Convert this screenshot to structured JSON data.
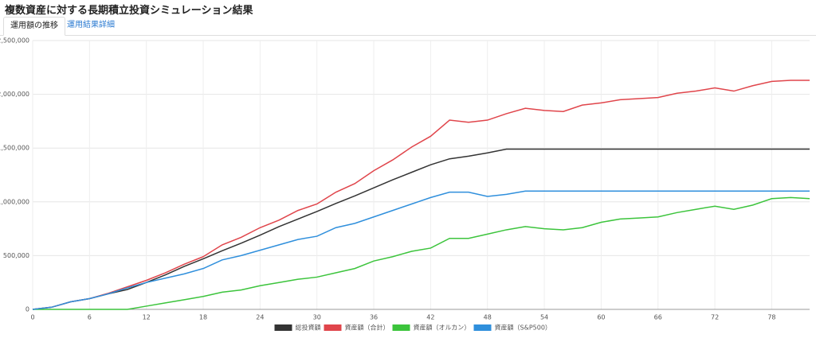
{
  "tabs": [
    "運用額の推移",
    "運用結果詳細"
  ],
  "chart_data": {
    "type": "line",
    "title": "複数資産に対する長期積立投資シミュレーション結果",
    "x": [
      0,
      2,
      4,
      6,
      8,
      10,
      12,
      14,
      16,
      18,
      20,
      22,
      24,
      26,
      28,
      30,
      32,
      34,
      36,
      38,
      40,
      42,
      44,
      46,
      48,
      50,
      52,
      54,
      56,
      58,
      60,
      62,
      64,
      66,
      68,
      70,
      72,
      74,
      76,
      78,
      80,
      82
    ],
    "series": [
      {
        "name": "総投資額",
        "color": "#333333",
        "values": [
          0,
          20000,
          70000,
          100000,
          145000,
          185000,
          250000,
          320000,
          400000,
          470000,
          545000,
          615000,
          690000,
          770000,
          840000,
          910000,
          985000,
          1055000,
          1130000,
          1205000,
          1275000,
          1345000,
          1400000,
          1425000,
          1455000,
          1490000,
          1490000,
          1490000,
          1490000,
          1490000,
          1490000,
          1490000,
          1490000,
          1490000,
          1490000,
          1490000,
          1490000,
          1490000,
          1490000,
          1490000,
          1490000,
          1490000
        ]
      },
      {
        "name": "資産額（合計）",
        "color": "#e0454b",
        "values": [
          0,
          20000,
          70000,
          100000,
          150000,
          210000,
          270000,
          340000,
          420000,
          490000,
          600000,
          670000,
          760000,
          830000,
          920000,
          980000,
          1090000,
          1170000,
          1290000,
          1390000,
          1510000,
          1610000,
          1760000,
          1740000,
          1760000,
          1820000,
          1870000,
          1850000,
          1840000,
          1900000,
          1920000,
          1950000,
          1960000,
          1970000,
          2010000,
          2030000,
          2060000,
          2030000,
          2080000,
          2120000,
          2130000,
          2130000
        ]
      },
      {
        "name": "資産額（オルカン）",
        "color": "#3cc43c",
        "values": [
          0,
          0,
          0,
          0,
          0,
          0,
          30000,
          60000,
          90000,
          120000,
          160000,
          180000,
          220000,
          250000,
          280000,
          300000,
          340000,
          380000,
          450000,
          490000,
          540000,
          570000,
          660000,
          660000,
          700000,
          740000,
          770000,
          750000,
          740000,
          760000,
          810000,
          840000,
          850000,
          860000,
          900000,
          930000,
          960000,
          930000,
          970000,
          1030000,
          1040000,
          1030000
        ]
      },
      {
        "name": "資産額（S&P500）",
        "color": "#2f8fdc",
        "values": [
          0,
          20000,
          70000,
          100000,
          145000,
          200000,
          250000,
          290000,
          330000,
          380000,
          460000,
          500000,
          550000,
          600000,
          650000,
          680000,
          760000,
          800000,
          860000,
          920000,
          980000,
          1040000,
          1090000,
          1090000,
          1050000,
          1070000,
          1100000,
          1100000,
          1100000,
          1100000,
          1100000,
          1100000,
          1100000,
          1100000,
          1100000,
          1100000,
          1100000,
          1100000,
          1100000,
          1100000,
          1100000,
          1100000
        ]
      }
    ],
    "xlim": [
      0,
      82
    ],
    "xticks": [
      0,
      6,
      12,
      18,
      24,
      30,
      36,
      42,
      48,
      54,
      60,
      66,
      72,
      78
    ],
    "ylim": [
      0,
      2500000
    ],
    "yticks": [
      0,
      {
        "value": 500000,
        "label": "500,000"
      },
      {
        "value": 1000000,
        "label": "1,000,000"
      },
      {
        "value": 1500000,
        "label": "1,500,000"
      },
      {
        "value": 2000000,
        "label": "2,000,000"
      },
      {
        "value": 2500000,
        "label": "2,500,000"
      }
    ],
    "grid": true,
    "legend": "bottom"
  }
}
